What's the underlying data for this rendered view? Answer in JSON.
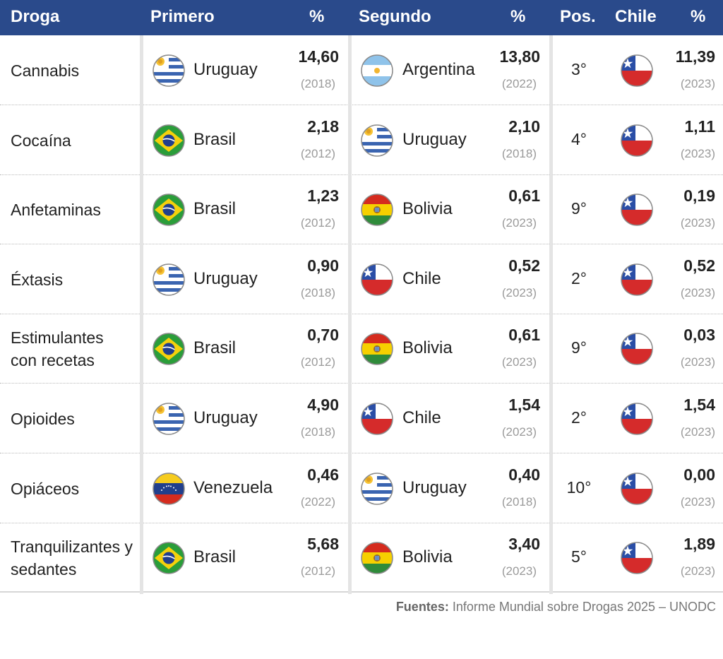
{
  "headers": {
    "droga": "Droga",
    "primero": "Primero",
    "pct1": "%",
    "segundo": "Segundo",
    "pct2": "%",
    "pos": "Pos.",
    "chile": "Chile",
    "pct3": "%"
  },
  "rows": [
    {
      "droga": "Cannabis",
      "first": {
        "country": "Uruguay",
        "flag": "uruguay-flag",
        "value": "14,60",
        "year": "(2018)"
      },
      "second": {
        "country": "Argentina",
        "flag": "argentina-flag",
        "value": "13,80",
        "year": "(2022)"
      },
      "pos": "3°",
      "chile": {
        "flag": "chile-flag",
        "value": "11,39",
        "year": "(2023)"
      }
    },
    {
      "droga": "Cocaína",
      "first": {
        "country": "Brasil",
        "flag": "brazil-flag",
        "value": "2,18",
        "year": "(2012)"
      },
      "second": {
        "country": "Uruguay",
        "flag": "uruguay-flag",
        "value": "2,10",
        "year": "(2018)"
      },
      "pos": "4°",
      "chile": {
        "flag": "chile-flag",
        "value": "1,11",
        "year": "(2023)"
      }
    },
    {
      "droga": "Anfetaminas",
      "first": {
        "country": "Brasil",
        "flag": "brazil-flag",
        "value": "1,23",
        "year": "(2012)"
      },
      "second": {
        "country": "Bolivia",
        "flag": "bolivia-flag",
        "value": "0,61",
        "year": "(2023)"
      },
      "pos": "9°",
      "chile": {
        "flag": "chile-flag",
        "value": "0,19",
        "year": "(2023)"
      }
    },
    {
      "droga": "Éxtasis",
      "first": {
        "country": "Uruguay",
        "flag": "uruguay-flag",
        "value": "0,90",
        "year": "(2018)"
      },
      "second": {
        "country": "Chile",
        "flag": "chile-flag",
        "value": "0,52",
        "year": "(2023)"
      },
      "pos": "2°",
      "chile": {
        "flag": "chile-flag",
        "value": "0,52",
        "year": "(2023)"
      }
    },
    {
      "droga": "Estimulantes con recetas",
      "first": {
        "country": "Brasil",
        "flag": "brazil-flag",
        "value": "0,70",
        "year": "(2012)"
      },
      "second": {
        "country": "Bolivia",
        "flag": "bolivia-flag",
        "value": "0,61",
        "year": "(2023)"
      },
      "pos": "9°",
      "chile": {
        "flag": "chile-flag",
        "value": "0,03",
        "year": "(2023)"
      }
    },
    {
      "droga": "Opioides",
      "first": {
        "country": "Uruguay",
        "flag": "uruguay-flag",
        "value": "4,90",
        "year": "(2018)"
      },
      "second": {
        "country": "Chile",
        "flag": "chile-flag",
        "value": "1,54",
        "year": "(2023)"
      },
      "pos": "2°",
      "chile": {
        "flag": "chile-flag",
        "value": "1,54",
        "year": "(2023)"
      }
    },
    {
      "droga": "Opiáceos",
      "first": {
        "country": "Venezuela",
        "flag": "venezuela-flag",
        "value": "0,46",
        "year": "(2022)"
      },
      "second": {
        "country": "Uruguay",
        "flag": "uruguay-flag",
        "value": "0,40",
        "year": "(2018)"
      },
      "pos": "10°",
      "chile": {
        "flag": "chile-flag",
        "value": "0,00",
        "year": "(2023)"
      }
    },
    {
      "droga": "Tranquilizantes y sedantes",
      "first": {
        "country": "Brasil",
        "flag": "brazil-flag",
        "value": "5,68",
        "year": "(2012)"
      },
      "second": {
        "country": "Bolivia",
        "flag": "bolivia-flag",
        "value": "3,40",
        "year": "(2023)"
      },
      "pos": "5°",
      "chile": {
        "flag": "chile-flag",
        "value": "1,89",
        "year": "(2023)"
      }
    }
  ],
  "footer": {
    "label": "Fuentes:",
    "text": " Informe Mundial sobre Drogas 2025 – UNODC"
  }
}
